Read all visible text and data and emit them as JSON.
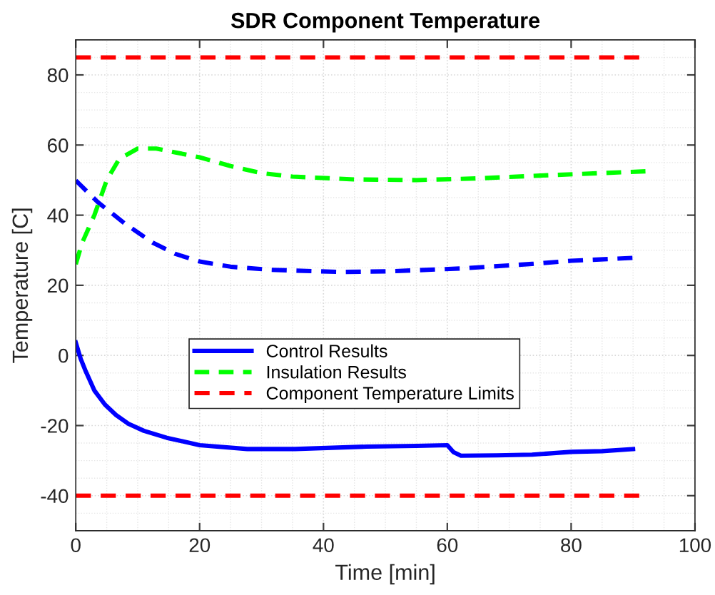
{
  "chart_data": {
    "type": "line",
    "title": "SDR Component Temperature",
    "xlabel": "Time [min]",
    "ylabel": "Temperature [C]",
    "xlim": [
      0,
      100
    ],
    "xticks": [
      0,
      20,
      40,
      60,
      80,
      100
    ],
    "ylim": [
      -50,
      90
    ],
    "yticks": [
      -40,
      -20,
      0,
      20,
      40,
      60,
      80
    ],
    "grid": true,
    "legend": "center",
    "series": [
      {
        "name": "Control Results",
        "color": "#0000ff",
        "line_style": "solid",
        "x": [
          0,
          0.8,
          1.6,
          3,
          4.7,
          6.5,
          8.5,
          11,
          14.7,
          20,
          27.7,
          35.4,
          47,
          55,
          60,
          61,
          62.2,
          68,
          73.7,
          80,
          85,
          90
        ],
        "values": [
          3.7,
          -1,
          -4.5,
          -10,
          -14,
          -17,
          -19.5,
          -21.5,
          -23.5,
          -25.6,
          -26.7,
          -26.7,
          -26,
          -25.8,
          -25.6,
          -27.6,
          -28.6,
          -28.5,
          -28.3,
          -27.5,
          -27.3,
          -26.7
        ]
      },
      {
        "color": "#0000ff",
        "line_style": "dashed",
        "x": [
          0,
          3.5,
          8,
          12.4,
          16,
          20,
          25,
          31.6,
          43,
          50.7,
          62.2,
          73.7,
          80,
          89.9
        ],
        "values": [
          49.9,
          43.8,
          37.5,
          32.2,
          29,
          26.8,
          25.3,
          24.4,
          23.8,
          24,
          24.8,
          26.1,
          27,
          27.8
        ]
      },
      {
        "name": "Insulation Results",
        "color": "#00ff00",
        "line_style": "dashed",
        "x": [
          0,
          1,
          2,
          3,
          4,
          5,
          7,
          10,
          13,
          20,
          25,
          30,
          35,
          45,
          55,
          65,
          75,
          85,
          92
        ],
        "values": [
          26,
          32,
          36,
          40,
          45,
          50,
          56,
          59,
          59,
          56.5,
          54,
          52,
          51,
          50.2,
          50,
          50.5,
          51.3,
          52,
          52.5
        ]
      },
      {
        "name": "Component Temperature Limits",
        "color": "#ff0000",
        "line_style": "dashed",
        "x": [
          0,
          91
        ],
        "values": [
          85,
          85
        ]
      },
      {
        "color": "#ff0000",
        "line_style": "dashed",
        "x": [
          0,
          91
        ],
        "values": [
          -40,
          -40
        ]
      }
    ]
  }
}
